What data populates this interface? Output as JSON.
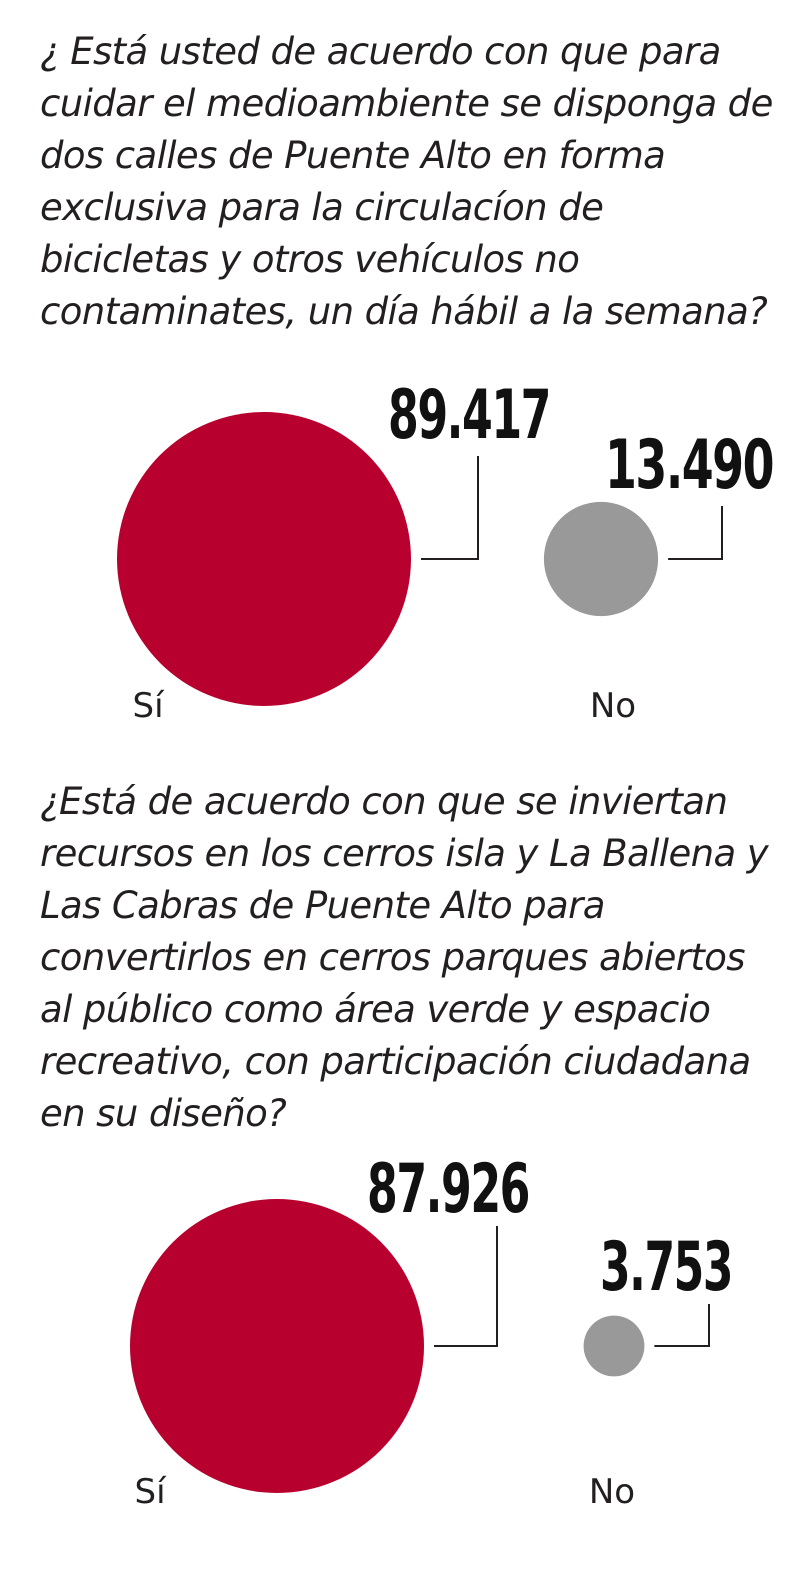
{
  "questions": [
    "¿ Está usted de acuerdo con que para cuidar el medioambiente se disponga de dos calles de Puente Alto en forma exclusiva para la circulacíon de bicicletas y otros vehículos no contaminates, un día hábil a la semana?",
    "¿Está de acuerdo con que se inviertan recursos en los cerros isla y La Ballena y Las Cabras de Puente Alto para convertirlos en cerros parques abiertos al público como área verde y espacio recreativo, con participación ciudadana en su diseño?"
  ],
  "chart_data": [
    {
      "type": "bubble",
      "title": "¿ Está usted de acuerdo con que para cuidar el medioambiente se disponga de dos calles de Puente Alto en forma exclusiva para la circulacíon de bicicletas y otros vehículos no contaminates, un día hábil a la semana?",
      "categories": [
        "Sí",
        "No"
      ],
      "values": [
        89417,
        13490
      ],
      "value_labels": [
        "89.417",
        "13.490"
      ],
      "colors": [
        "#b8002e",
        "#999999"
      ]
    },
    {
      "type": "bubble",
      "title": "¿Está de acuerdo con que se inviertan recursos en los cerros isla y La Ballena y Las Cabras de Puente Alto para convertirlos en cerros parques abiertos al público como área verde y espacio recreativo, con participación ciudadana en su diseño?",
      "categories": [
        "Sí",
        "No"
      ],
      "values": [
        87926,
        3753
      ],
      "value_labels": [
        "87.926",
        "3.753"
      ],
      "colors": [
        "#b8002e",
        "#999999"
      ]
    }
  ]
}
